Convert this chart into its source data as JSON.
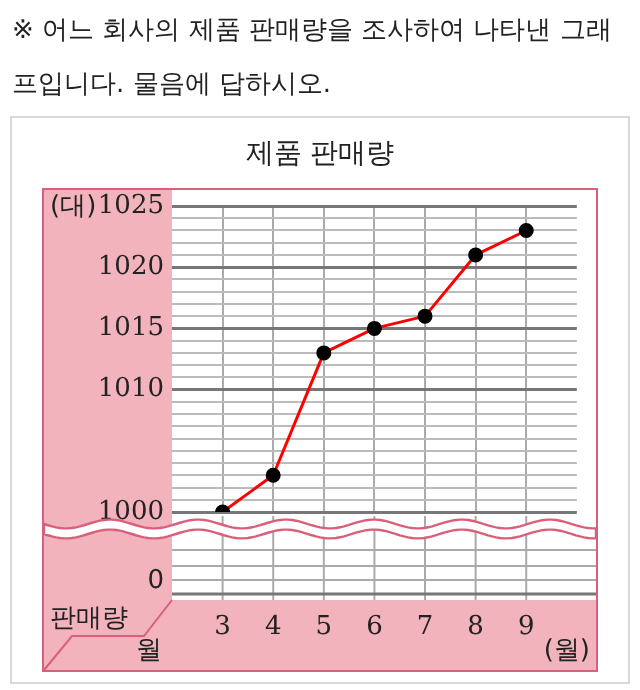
{
  "chart_data": {
    "type": "line",
    "title": "제품 판매량",
    "xlabel": "(월)",
    "ylabel": "(대)",
    "annotations": [
      "※ 어느 회사의 제품 판매량을 조사하여 나타낸 그래프입니다. 물음에 답하시오.",
      "0",
      "판매량",
      "월"
    ],
    "x": [
      3,
      4,
      5,
      6,
      7,
      8,
      9
    ],
    "series": [
      {
        "color": "#ff0000",
        "values": [
          1000,
          1003,
          1013,
          1015,
          1016,
          1021,
          1023
        ]
      }
    ],
    "xlim": [
      2,
      10
    ],
    "xticks": [
      3,
      4,
      5,
      6,
      7,
      8,
      9
    ],
    "ylim": [
      1000,
      1025
    ],
    "yticks": [
      1000,
      {
        "value": 1001,
        "label": null
      },
      {
        "value": 1002,
        "label": null
      },
      {
        "value": 1003,
        "label": null
      },
      {
        "value": 1004,
        "label": null
      },
      {
        "value": 1005,
        "label": null
      },
      {
        "value": 1006,
        "label": null
      },
      {
        "value": 1007,
        "label": null
      },
      {
        "value": 1008,
        "label": null
      },
      {
        "value": 1009,
        "label": null
      },
      1010,
      {
        "value": 1011,
        "label": null
      },
      {
        "value": 1012,
        "label": null
      },
      {
        "value": 1013,
        "label": null
      },
      {
        "value": 1014,
        "label": null
      },
      1015,
      {
        "value": 1016,
        "label": null
      },
      {
        "value": 1017,
        "label": null
      },
      {
        "value": 1018,
        "label": null
      },
      {
        "value": 1019,
        "label": null
      },
      1020,
      {
        "value": 1021,
        "label": null
      },
      {
        "value": 1022,
        "label": null
      },
      {
        "value": 1023,
        "label": null
      },
      {
        "value": 1024,
        "label": null
      },
      1025
    ],
    "grid": true,
    "legend": false,
    "marker": "circle",
    "line_style": "solid"
  }
}
